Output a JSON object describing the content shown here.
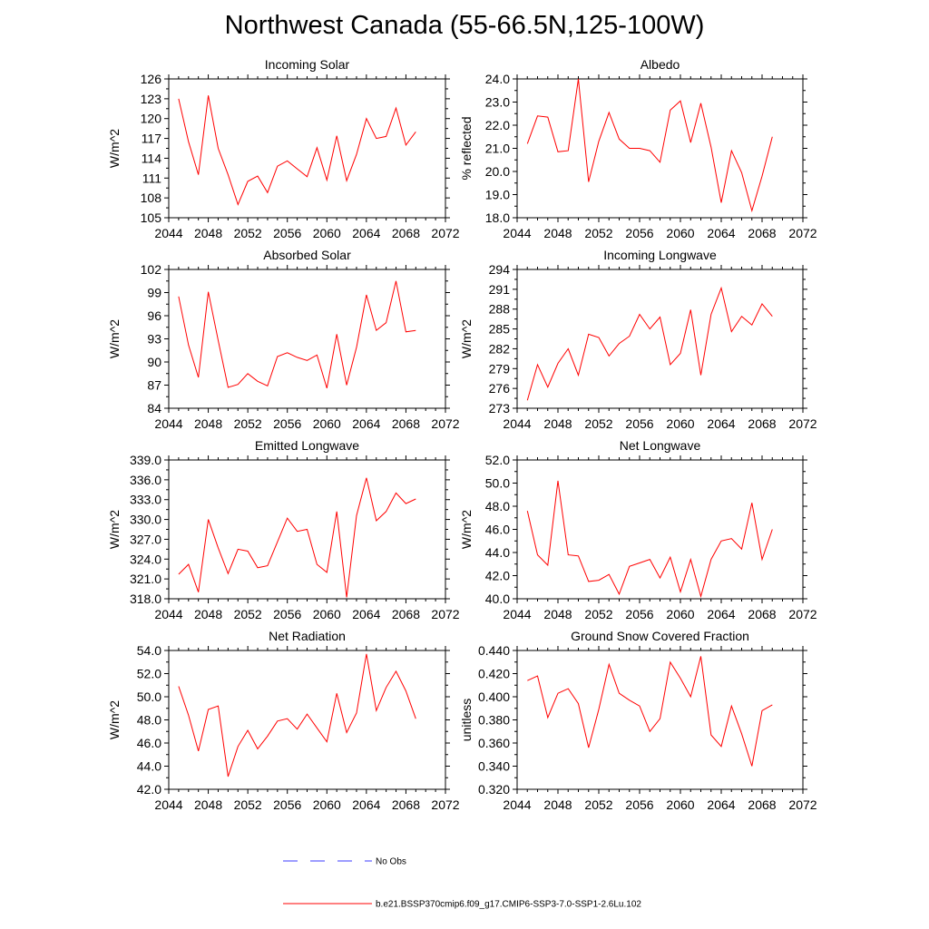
{
  "title": "Northwest Canada (55-66.5N,125-100W)",
  "colors": {
    "model": "#ff0000",
    "obs": "#3b3bff",
    "axis": "#000000"
  },
  "legend": {
    "obs_label": "No Obs",
    "model_label": "b.e21.BSSP370cmip6.f09_g17.CMIP6-SSP3-7.0-SSP1-2.6Lu.102"
  },
  "chart_data": [
    {
      "type": "line",
      "title": "Incoming Solar",
      "ylabel": "W/m^2",
      "xlim": [
        2044,
        2072
      ],
      "xticks": [
        2044,
        2048,
        2052,
        2056,
        2060,
        2064,
        2068,
        2072
      ],
      "ylim": [
        105,
        126
      ],
      "yticks": [
        "105",
        "108",
        "111",
        "114",
        "117",
        "120",
        "123",
        "126"
      ],
      "x": [
        2045,
        2046,
        2047,
        2048,
        2049,
        2050,
        2051,
        2052,
        2053,
        2054,
        2055,
        2056,
        2057,
        2058,
        2059,
        2060,
        2061,
        2062,
        2063,
        2064,
        2065,
        2066,
        2067,
        2068,
        2069
      ],
      "series": [
        {
          "name": "b.e21.BSSP370cmip6.f09_g17.CMIP6-SSP3-7.0-SSP1-2.6Lu.102",
          "values": [
            123.0,
            116.5,
            111.5,
            123.5,
            115.5,
            111.5,
            107.0,
            110.5,
            111.3,
            108.8,
            112.8,
            113.6,
            112.4,
            111.2,
            115.6,
            110.7,
            117.4,
            110.6,
            114.6,
            120.0,
            117.0,
            117.3,
            121.6,
            116.0,
            118.0
          ]
        }
      ]
    },
    {
      "type": "line",
      "title": "Albedo",
      "ylabel": "% reflected",
      "xlim": [
        2044,
        2072
      ],
      "xticks": [
        2044,
        2048,
        2052,
        2056,
        2060,
        2064,
        2068,
        2072
      ],
      "ylim": [
        18.0,
        24.0
      ],
      "yticks": [
        "18.0",
        "19.0",
        "20.0",
        "21.0",
        "22.0",
        "23.0",
        "24.0"
      ],
      "x": [
        2045,
        2046,
        2047,
        2048,
        2049,
        2050,
        2051,
        2052,
        2053,
        2054,
        2055,
        2056,
        2057,
        2058,
        2059,
        2060,
        2061,
        2062,
        2063,
        2064,
        2065,
        2066,
        2067,
        2068,
        2069
      ],
      "series": [
        {
          "name": "b.e21.BSSP370cmip6.f09_g17.CMIP6-SSP3-7.0-SSP1-2.6Lu.102",
          "values": [
            21.2,
            22.4,
            22.35,
            20.85,
            20.9,
            24.0,
            19.55,
            21.3,
            22.55,
            21.4,
            21.0,
            21.0,
            20.9,
            20.4,
            22.65,
            23.05,
            21.25,
            22.95,
            21.05,
            18.65,
            20.9,
            19.95,
            18.3,
            19.8,
            21.5
          ]
        }
      ]
    },
    {
      "type": "line",
      "title": "Absorbed Solar",
      "ylabel": "W/m^2",
      "xlim": [
        2044,
        2072
      ],
      "xticks": [
        2044,
        2048,
        2052,
        2056,
        2060,
        2064,
        2068,
        2072
      ],
      "ylim": [
        84,
        102
      ],
      "yticks": [
        "84",
        "87",
        "90",
        "93",
        "96",
        "99",
        "102"
      ],
      "x": [
        2045,
        2046,
        2047,
        2048,
        2049,
        2050,
        2051,
        2052,
        2053,
        2054,
        2055,
        2056,
        2057,
        2058,
        2059,
        2060,
        2061,
        2062,
        2063,
        2064,
        2065,
        2066,
        2067,
        2068,
        2069
      ],
      "series": [
        {
          "name": "b.e21.BSSP370cmip6.f09_g17.CMIP6-SSP3-7.0-SSP1-2.6Lu.102",
          "values": [
            98.5,
            92.2,
            88.0,
            99.1,
            92.8,
            86.7,
            87.1,
            88.5,
            87.5,
            86.9,
            90.7,
            91.2,
            90.6,
            90.2,
            90.9,
            86.6,
            93.6,
            87.0,
            91.9,
            98.7,
            94.1,
            95.1,
            100.5,
            93.9,
            94.1
          ]
        }
      ]
    },
    {
      "type": "line",
      "title": "Incoming Longwave",
      "ylabel": "W/m^2",
      "xlim": [
        2044,
        2072
      ],
      "xticks": [
        2044,
        2048,
        2052,
        2056,
        2060,
        2064,
        2068,
        2072
      ],
      "ylim": [
        273,
        294
      ],
      "yticks": [
        "273",
        "276",
        "279",
        "282",
        "285",
        "288",
        "291",
        "294"
      ],
      "x": [
        2045,
        2046,
        2047,
        2048,
        2049,
        2050,
        2051,
        2052,
        2053,
        2054,
        2055,
        2056,
        2057,
        2058,
        2059,
        2060,
        2061,
        2062,
        2063,
        2064,
        2065,
        2066,
        2067,
        2068,
        2069
      ],
      "series": [
        {
          "name": "b.e21.BSSP370cmip6.f09_g17.CMIP6-SSP3-7.0-SSP1-2.6Lu.102",
          "values": [
            274.2,
            279.6,
            276.2,
            279.8,
            282.0,
            278.0,
            284.2,
            283.7,
            280.9,
            282.8,
            283.9,
            287.2,
            285.0,
            286.8,
            279.6,
            281.3,
            287.9,
            278.0,
            287.2,
            291.2,
            284.6,
            286.9,
            285.6,
            288.8,
            286.9
          ]
        }
      ]
    },
    {
      "type": "line",
      "title": "Emitted Longwave",
      "ylabel": "W/m^2",
      "xlim": [
        2044,
        2072
      ],
      "xticks": [
        2044,
        2048,
        2052,
        2056,
        2060,
        2064,
        2068,
        2072
      ],
      "ylim": [
        318.0,
        339.0
      ],
      "yticks": [
        "318.0",
        "321.0",
        "324.0",
        "327.0",
        "330.0",
        "333.0",
        "336.0",
        "339.0"
      ],
      "x": [
        2045,
        2046,
        2047,
        2048,
        2049,
        2050,
        2051,
        2052,
        2053,
        2054,
        2055,
        2056,
        2057,
        2058,
        2059,
        2060,
        2061,
        2062,
        2063,
        2064,
        2065,
        2066,
        2067,
        2068,
        2069
      ],
      "series": [
        {
          "name": "b.e21.BSSP370cmip6.f09_g17.CMIP6-SSP3-7.0-SSP1-2.6Lu.102",
          "values": [
            321.7,
            323.2,
            319.0,
            330.0,
            325.7,
            321.8,
            325.5,
            325.2,
            322.7,
            323.0,
            326.6,
            330.2,
            328.2,
            328.5,
            323.2,
            322.0,
            331.2,
            318.2,
            330.6,
            336.3,
            329.8,
            331.2,
            334.0,
            332.4,
            333.1
          ]
        }
      ]
    },
    {
      "type": "line",
      "title": "Net Longwave",
      "ylabel": "W/m^2",
      "xlim": [
        2044,
        2072
      ],
      "xticks": [
        2044,
        2048,
        2052,
        2056,
        2060,
        2064,
        2068,
        2072
      ],
      "ylim": [
        40.0,
        52.0
      ],
      "yticks": [
        "40.0",
        "42.0",
        "44.0",
        "46.0",
        "48.0",
        "50.0",
        "52.0"
      ],
      "x": [
        2045,
        2046,
        2047,
        2048,
        2049,
        2050,
        2051,
        2052,
        2053,
        2054,
        2055,
        2056,
        2057,
        2058,
        2059,
        2060,
        2061,
        2062,
        2063,
        2064,
        2065,
        2066,
        2067,
        2068,
        2069
      ],
      "series": [
        {
          "name": "b.e21.BSSP370cmip6.f09_g17.CMIP6-SSP3-7.0-SSP1-2.6Lu.102",
          "values": [
            47.6,
            43.8,
            42.9,
            50.2,
            43.8,
            43.7,
            41.5,
            41.6,
            42.1,
            40.4,
            42.8,
            43.1,
            43.4,
            41.8,
            43.6,
            40.6,
            43.4,
            40.2,
            43.4,
            45.0,
            45.2,
            44.3,
            48.3,
            43.4,
            46.0
          ]
        }
      ]
    },
    {
      "type": "line",
      "title": "Net Radiation",
      "ylabel": "W/m^2",
      "xlim": [
        2044,
        2072
      ],
      "xticks": [
        2044,
        2048,
        2052,
        2056,
        2060,
        2064,
        2068,
        2072
      ],
      "ylim": [
        42.0,
        54.0
      ],
      "yticks": [
        "42.0",
        "44.0",
        "46.0",
        "48.0",
        "50.0",
        "52.0",
        "54.0"
      ],
      "x": [
        2045,
        2046,
        2047,
        2048,
        2049,
        2050,
        2051,
        2052,
        2053,
        2054,
        2055,
        2056,
        2057,
        2058,
        2059,
        2060,
        2061,
        2062,
        2063,
        2064,
        2065,
        2066,
        2067,
        2068,
        2069
      ],
      "series": [
        {
          "name": "b.e21.BSSP370cmip6.f09_g17.CMIP6-SSP3-7.0-SSP1-2.6Lu.102",
          "values": [
            50.9,
            48.4,
            45.3,
            48.9,
            49.2,
            43.1,
            45.7,
            47.1,
            45.5,
            46.6,
            47.9,
            48.1,
            47.2,
            48.5,
            47.3,
            46.1,
            50.3,
            46.9,
            48.6,
            53.7,
            48.8,
            50.8,
            52.2,
            50.5,
            48.1
          ]
        }
      ]
    },
    {
      "type": "line",
      "title": "Ground Snow Covered Fraction",
      "ylabel": "unitless",
      "xlim": [
        2044,
        2072
      ],
      "xticks": [
        2044,
        2048,
        2052,
        2056,
        2060,
        2064,
        2068,
        2072
      ],
      "ylim": [
        0.32,
        0.44
      ],
      "yticks": [
        "0.320",
        "0.340",
        "0.360",
        "0.380",
        "0.400",
        "0.420",
        "0.440"
      ],
      "x": [
        2045,
        2046,
        2047,
        2048,
        2049,
        2050,
        2051,
        2052,
        2053,
        2054,
        2055,
        2056,
        2057,
        2058,
        2059,
        2060,
        2061,
        2062,
        2063,
        2064,
        2065,
        2066,
        2067,
        2068,
        2069
      ],
      "series": [
        {
          "name": "b.e21.BSSP370cmip6.f09_g17.CMIP6-SSP3-7.0-SSP1-2.6Lu.102",
          "values": [
            0.414,
            0.418,
            0.382,
            0.403,
            0.407,
            0.394,
            0.356,
            0.389,
            0.428,
            0.403,
            0.397,
            0.392,
            0.37,
            0.381,
            0.43,
            0.416,
            0.4,
            0.435,
            0.367,
            0.357,
            0.392,
            0.368,
            0.34,
            0.388,
            0.393
          ]
        }
      ]
    }
  ]
}
